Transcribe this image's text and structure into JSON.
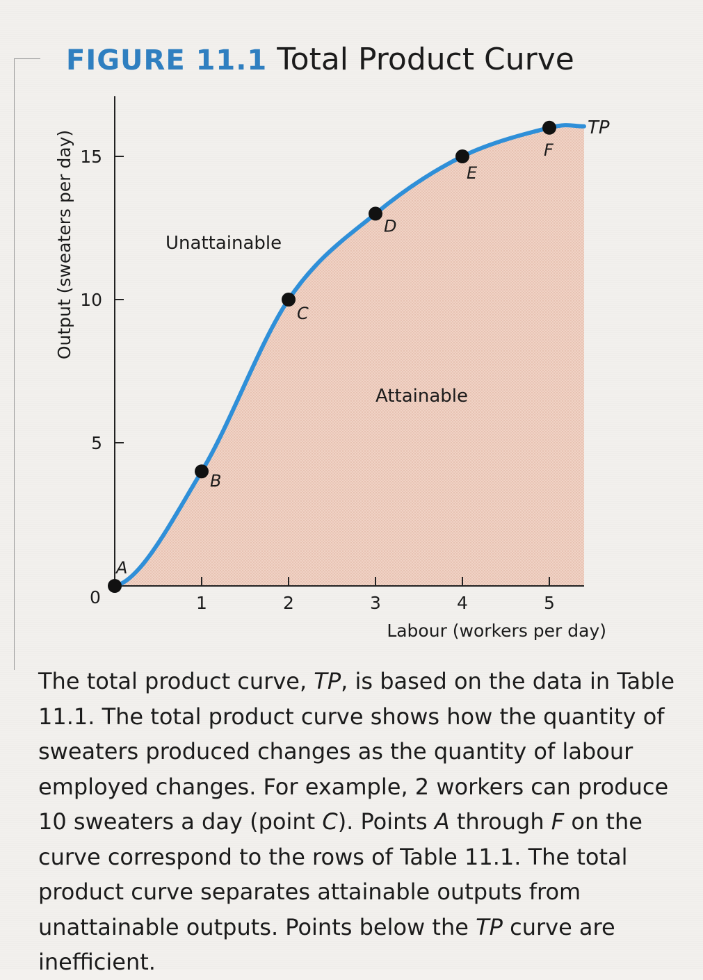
{
  "figure": {
    "number": "FIGURE 11.1",
    "title": "Total Product Curve"
  },
  "chart_data": {
    "type": "area",
    "series": [
      {
        "name": "TP",
        "x": [
          0,
          1,
          2,
          3,
          4,
          5
        ],
        "values": [
          0,
          4,
          10,
          13,
          15,
          16
        ]
      }
    ],
    "points": [
      {
        "label": "A",
        "x": 0,
        "y": 0
      },
      {
        "label": "B",
        "x": 1,
        "y": 4
      },
      {
        "label": "C",
        "x": 2,
        "y": 10
      },
      {
        "label": "D",
        "x": 3,
        "y": 13
      },
      {
        "label": "E",
        "x": 4,
        "y": 15
      },
      {
        "label": "F",
        "x": 5,
        "y": 16
      }
    ],
    "xlabel": "Labour (workers per day)",
    "ylabel": "Output (sweaters per day)",
    "xticks": [
      0,
      1,
      2,
      3,
      4,
      5
    ],
    "yticks": [
      0,
      5,
      10,
      15
    ],
    "xlim": [
      0,
      5.4
    ],
    "ylim": [
      0,
      16.5
    ],
    "regions": {
      "above": "Unattainable",
      "below": "Attainable"
    },
    "curve_label": "TP",
    "colors": {
      "curve": "#2f8fd8",
      "fill": "#f1d2c4",
      "point": "#111111"
    }
  },
  "caption": {
    "prefix": "The total product curve, ",
    "tp1": "TP",
    "mid1": ", is based on the data in Table 11.1. The total product curve shows how the quantity of sweaters produced changes as the quantity of labour employed changes. For example, 2 workers can produce 10 sweaters a day (point ",
    "c": "C",
    "mid2": "). Points ",
    "a": "A",
    "mid3": " through ",
    "f": "F",
    "mid4": " on the curve correspond to the rows of Table 11.1. The total product curve separates attainable outputs from unattainable outputs. Points below the ",
    "tp2": "TP",
    "suffix": " curve are inefficient."
  }
}
